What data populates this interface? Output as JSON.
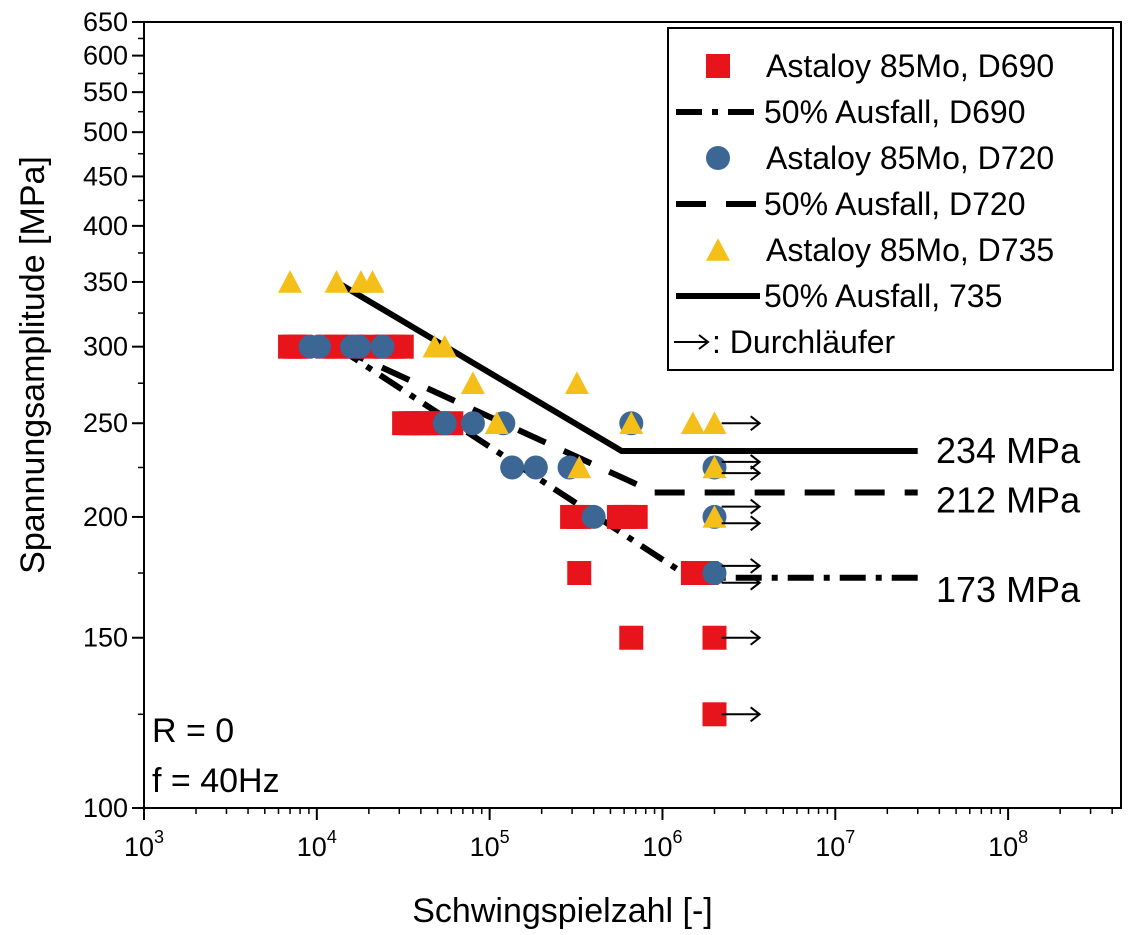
{
  "chart_data": {
    "type": "scatter",
    "xlabel": "Schwingspielzahl [-]",
    "ylabel": "Spannungsamplitude [MPa]",
    "xscale": "log",
    "yscale": "log",
    "xlim": [
      1000,
      450000000
    ],
    "ylim": [
      100,
      650
    ],
    "x_ticks": [
      {
        "base": "10",
        "exp": "3",
        "value": 1000
      },
      {
        "base": "10",
        "exp": "4",
        "value": 10000
      },
      {
        "base": "10",
        "exp": "5",
        "value": 100000
      },
      {
        "base": "10",
        "exp": "6",
        "value": 1000000
      },
      {
        "base": "10",
        "exp": "7",
        "value": 10000000
      },
      {
        "base": "10",
        "exp": "8",
        "value": 100000000
      }
    ],
    "y_ticks": [
      {
        "label": "100",
        "value": 100
      },
      {
        "label": "150",
        "value": 150
      },
      {
        "label": "200",
        "value": 200
      },
      {
        "label": "250",
        "value": 250
      },
      {
        "label": "300",
        "value": 300
      },
      {
        "label": "350",
        "value": 350
      },
      {
        "label": "400",
        "value": 400
      },
      {
        "label": "450",
        "value": 450
      },
      {
        "label": "500",
        "value": 500
      },
      {
        "label": "550",
        "value": 550
      },
      {
        "label": "600",
        "value": 600
      },
      {
        "label": "650",
        "value": 650
      }
    ],
    "grid": false,
    "legend_position": "top-right",
    "series": [
      {
        "name": "Astaloy 85Mo, D690",
        "kind": "marker",
        "marker": "square",
        "color": "#e8141b",
        "points": [
          [
            7000,
            300
          ],
          [
            7500,
            300
          ],
          [
            8000,
            300
          ],
          [
            11500,
            300
          ],
          [
            13000,
            300
          ],
          [
            16000,
            300
          ],
          [
            20000,
            300
          ],
          [
            25000,
            300
          ],
          [
            28000,
            300
          ],
          [
            31000,
            300
          ],
          [
            32000,
            250
          ],
          [
            35000,
            250
          ],
          [
            38000,
            250
          ],
          [
            42000,
            250
          ],
          [
            50000,
            250
          ],
          [
            60000,
            250
          ],
          [
            300000,
            200
          ],
          [
            330000,
            200
          ],
          [
            560000,
            200
          ],
          [
            610000,
            200
          ],
          [
            700000,
            200
          ],
          [
            330000,
            175
          ],
          [
            660000,
            150
          ],
          [
            1500000,
            175
          ],
          [
            1800000,
            175
          ],
          [
            2000000,
            150
          ],
          [
            2000000,
            125
          ]
        ]
      },
      {
        "name": "50% Ausfall, D690",
        "kind": "line",
        "dash": "dashdot",
        "color": "#000000",
        "points": [
          [
            13000,
            300
          ],
          [
            1450000,
            173
          ],
          [
            30000000,
            173
          ]
        ]
      },
      {
        "name": "Astaloy 85Mo, D720",
        "kind": "marker",
        "marker": "circle",
        "color": "#3c6694",
        "points": [
          [
            9200,
            300
          ],
          [
            10300,
            300
          ],
          [
            16000,
            300
          ],
          [
            17500,
            300
          ],
          [
            24000,
            300
          ],
          [
            55000,
            250
          ],
          [
            80000,
            250
          ],
          [
            120000,
            250
          ],
          [
            135000,
            225
          ],
          [
            185000,
            225
          ],
          [
            290000,
            225
          ],
          [
            400000,
            200
          ],
          [
            660000,
            250
          ],
          [
            2000000,
            225
          ],
          [
            2000000,
            200
          ],
          [
            2000000,
            175
          ]
        ]
      },
      {
        "name": "50% Ausfall, D720",
        "kind": "line",
        "dash": "dash",
        "color": "#000000",
        "points": [
          [
            13000,
            300
          ],
          [
            900000,
            212
          ],
          [
            30000000,
            212
          ]
        ]
      },
      {
        "name": "Astaloy 85Mo, D735",
        "kind": "marker",
        "marker": "triangle",
        "color": "#f5bf1a",
        "points": [
          [
            7000,
            350
          ],
          [
            13000,
            350
          ],
          [
            18000,
            350
          ],
          [
            21000,
            350
          ],
          [
            48000,
            300
          ],
          [
            55000,
            300
          ],
          [
            80000,
            275
          ],
          [
            110000,
            250
          ],
          [
            320000,
            275
          ],
          [
            330000,
            225
          ],
          [
            660000,
            250
          ],
          [
            1500000,
            250
          ],
          [
            2000000,
            250
          ],
          [
            2000000,
            225
          ],
          [
            2000000,
            200
          ]
        ]
      },
      {
        "name": "50% Ausfall, 735",
        "kind": "line",
        "dash": "solid",
        "color": "#000000",
        "points": [
          [
            13000,
            350
          ],
          [
            580000,
            234
          ],
          [
            30000000,
            234
          ]
        ]
      }
    ],
    "runouts": [
      [
        2200000,
        250
      ],
      [
        2200000,
        228
      ],
      [
        2200000,
        222
      ],
      [
        2200000,
        205
      ],
      [
        2200000,
        197
      ],
      [
        2200000,
        178
      ],
      [
        2200000,
        171
      ],
      [
        2200000,
        150
      ],
      [
        2200000,
        125
      ]
    ],
    "legend_runout_label": ": Durchläufer",
    "plateau_labels": [
      {
        "text": "234 MPa",
        "y": 234
      },
      {
        "text": "212 MPa",
        "y": 212
      },
      {
        "text": "173 MPa",
        "y": 173
      }
    ],
    "annotations": [
      "R = 0",
      "f   = 40Hz"
    ]
  }
}
